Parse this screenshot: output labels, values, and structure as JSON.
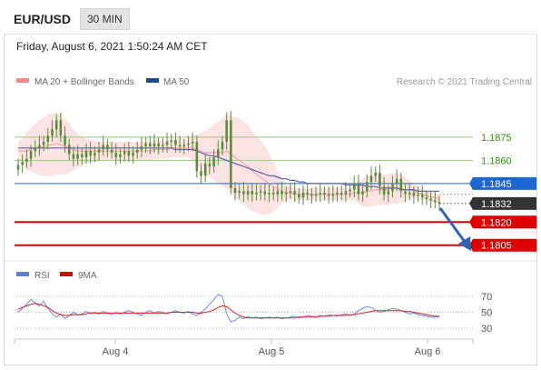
{
  "header": {
    "pair": "EUR/USD",
    "timeframe": "30 MIN"
  },
  "timestamp": "Friday, August 6, 2021 1:50:24 AM CET",
  "credit": "Research © 2021 Trading Central",
  "legend": {
    "bollinger": "MA 20 + Bollinger Bands",
    "ma50": "MA 50",
    "rsi": "RSI",
    "rsi_ma": "9MA"
  },
  "colors": {
    "candle": "#5a8a3c",
    "bollinger_fill": "#fcdede",
    "ma20": "#f0a8a8",
    "ma50": "#5b5fa8",
    "target": "#e00000",
    "pivot": "#1e66d0",
    "resistance": "#9cc87a",
    "resistance_label": "#3a8a1c",
    "current": "#333333",
    "arrow": "#2f62b3",
    "rsi": "#6b8de3",
    "rsi_ma": "#e02020"
  },
  "chart_data": {
    "type": "candlestick",
    "timeframe": "30 MIN",
    "x_ticks": [
      "Aug 4",
      "Aug 5",
      "Aug 6"
    ],
    "price_range": [
      1.1796,
      1.1905
    ],
    "levels": [
      {
        "value": "1.1875",
        "kind": "resistance"
      },
      {
        "value": "1.1860",
        "kind": "resistance"
      },
      {
        "value": "1.1845",
        "kind": "pivot"
      },
      {
        "value": "1.1832",
        "kind": "current"
      },
      {
        "value": "1.1820",
        "kind": "target"
      },
      {
        "value": "1.1805",
        "kind": "target"
      }
    ],
    "close_series": [
      1.1857,
      1.1859,
      1.1861,
      1.1866,
      1.1868,
      1.187,
      1.1872,
      1.1876,
      1.188,
      1.1886,
      1.1876,
      1.187,
      1.1864,
      1.1861,
      1.1864,
      1.1862,
      1.1866,
      1.1863,
      1.1865,
      1.1867,
      1.187,
      1.1867,
      1.1865,
      1.1862,
      1.1864,
      1.1866,
      1.1863,
      1.1865,
      1.1867,
      1.1869,
      1.1871,
      1.1869,
      1.1871,
      1.1869,
      1.187,
      1.1872,
      1.1873,
      1.187,
      1.1869,
      1.187,
      1.1871,
      1.1872,
      1.1853,
      1.185,
      1.1858,
      1.1856,
      1.1862,
      1.1867,
      1.1872,
      1.1886,
      1.1842,
      1.1839,
      1.184,
      1.1838,
      1.184,
      1.1838,
      1.1839,
      1.184,
      1.1838,
      1.1839,
      1.1838,
      1.184,
      1.1838,
      1.1839,
      1.184,
      1.1838,
      1.1836,
      1.1839,
      1.1838,
      1.1837,
      1.1838,
      1.1839,
      1.1838,
      1.1837,
      1.1838,
      1.1839,
      1.1838,
      1.184,
      1.1841,
      1.1845,
      1.1838,
      1.184,
      1.1846,
      1.185,
      1.1852,
      1.1843,
      1.1838,
      1.184,
      1.1845,
      1.1848,
      1.184,
      1.1838,
      1.1839,
      1.1837,
      1.1838,
      1.1836,
      1.1835,
      1.1834,
      1.1833,
      1.1832
    ],
    "ma20_series": [
      1.1866,
      1.1866,
      1.1866,
      1.1867,
      1.1868,
      1.1868,
      1.1869,
      1.187,
      1.187,
      1.1871,
      1.187,
      1.1869,
      1.1868,
      1.1867,
      1.1866,
      1.1866,
      1.1866,
      1.1866,
      1.1866,
      1.1866,
      1.1866,
      1.1866,
      1.1866,
      1.1866,
      1.1866,
      1.1866,
      1.1866,
      1.1866,
      1.1866,
      1.1866,
      1.1866,
      1.1866,
      1.1867,
      1.1867,
      1.1867,
      1.1867,
      1.1868,
      1.1868,
      1.1868,
      1.1868,
      1.1868,
      1.1868,
      1.1867,
      1.1866,
      1.1865,
      1.1865,
      1.1865,
      1.1865,
      1.1865,
      1.1866,
      1.1864,
      1.1862,
      1.186,
      1.1858,
      1.1856,
      1.1853,
      1.1851,
      1.1849,
      1.1847,
      1.1845,
      1.1843,
      1.1841,
      1.184,
      1.1839,
      1.1839,
      1.1838,
      1.1838,
      1.1838,
      1.1838,
      1.1838,
      1.1838,
      1.1838,
      1.1838,
      1.1838,
      1.1838,
      1.1838,
      1.1838,
      1.1838,
      1.1838,
      1.1839,
      1.1839,
      1.1839,
      1.184,
      1.184,
      1.1841,
      1.1841,
      1.1841,
      1.1841,
      1.1842,
      1.1842,
      1.1842,
      1.1841,
      1.1841,
      1.184,
      1.1839,
      1.1838,
      1.1837,
      1.1836,
      1.1836,
      1.1835
    ],
    "ma50_series": [
      1.1868,
      1.1868,
      1.1868,
      1.1868,
      1.1868,
      1.1868,
      1.1868,
      1.1868,
      1.1868,
      1.1868,
      1.1868,
      1.1868,
      1.1868,
      1.1868,
      1.1868,
      1.1868,
      1.1868,
      1.1868,
      1.1868,
      1.1868,
      1.1868,
      1.1868,
      1.1868,
      1.1868,
      1.1868,
      1.1868,
      1.1868,
      1.1868,
      1.1868,
      1.1868,
      1.1868,
      1.1868,
      1.1868,
      1.1868,
      1.1868,
      1.1868,
      1.1868,
      1.1867,
      1.1867,
      1.1867,
      1.1867,
      1.1867,
      1.1866,
      1.1865,
      1.1864,
      1.1863,
      1.1863,
      1.1862,
      1.1861,
      1.186,
      1.1859,
      1.1858,
      1.1857,
      1.1856,
      1.1855,
      1.1854,
      1.1853,
      1.1852,
      1.1851,
      1.185,
      1.185,
      1.1849,
      1.1848,
      1.1848,
      1.1847,
      1.1847,
      1.1846,
      1.1846,
      1.1845,
      1.1845,
      1.1845,
      1.1845,
      1.1845,
      1.1845,
      1.1845,
      1.1845,
      1.1845,
      1.1844,
      1.1844,
      1.1844,
      1.1844,
      1.1844,
      1.1843,
      1.1843,
      1.1843,
      1.1842,
      1.1842,
      1.1842,
      1.1842,
      1.1842,
      1.1841,
      1.1841,
      1.1841,
      1.1841,
      1.184,
      1.184,
      1.184,
      1.184,
      1.184,
      1.184
    ],
    "bollinger_width_series": [
      0.0006,
      0.0008,
      0.0012,
      0.0014,
      0.0016,
      0.0018,
      0.0019,
      0.002,
      0.002,
      0.002,
      0.0019,
      0.0018,
      0.0016,
      0.0013,
      0.0011,
      0.0009,
      0.0008,
      0.0007,
      0.0007,
      0.0006,
      0.0006,
      0.0006,
      0.0006,
      0.0006,
      0.0006,
      0.0006,
      0.0006,
      0.0006,
      0.0006,
      0.0006,
      0.0006,
      0.0006,
      0.0006,
      0.0006,
      0.0006,
      0.0006,
      0.0006,
      0.0006,
      0.0006,
      0.0006,
      0.0006,
      0.0008,
      0.001,
      0.0012,
      0.0014,
      0.0016,
      0.0018,
      0.002,
      0.0022,
      0.0024,
      0.0025,
      0.0026,
      0.0027,
      0.0027,
      0.0027,
      0.0026,
      0.0025,
      0.0024,
      0.0022,
      0.002,
      0.0016,
      0.0012,
      0.0008,
      0.0005,
      0.0004,
      0.0004,
      0.0004,
      0.0004,
      0.0004,
      0.0004,
      0.0004,
      0.0004,
      0.0004,
      0.0004,
      0.0004,
      0.0004,
      0.0004,
      0.0004,
      0.0004,
      0.0005,
      0.0007,
      0.0009,
      0.001,
      0.001,
      0.001,
      0.001,
      0.001,
      0.001,
      0.001,
      0.001,
      0.0009,
      0.0008,
      0.0006,
      0.0005,
      0.0004,
      0.0003,
      0.0003,
      0.0003,
      0.0003,
      0.0003
    ],
    "rsi_levels": [
      "70",
      "50",
      "30"
    ],
    "rsi_range": [
      20,
      80
    ],
    "rsi_series": [
      50,
      55,
      60,
      66,
      62,
      58,
      64,
      55,
      48,
      44,
      48,
      42,
      46,
      50,
      47,
      48,
      51,
      49,
      50,
      48,
      51,
      49,
      47,
      50,
      48,
      50,
      52,
      50,
      48,
      46,
      50,
      52,
      49,
      51,
      50,
      48,
      50,
      52,
      50,
      49,
      51,
      48,
      46,
      50,
      54,
      60,
      66,
      72,
      70,
      48,
      38,
      40,
      44,
      42,
      45,
      43,
      44,
      42,
      43,
      44,
      43,
      44,
      42,
      43,
      44,
      45,
      43,
      44,
      46,
      45,
      44,
      46,
      45,
      47,
      46,
      45,
      47,
      48,
      46,
      48,
      52,
      55,
      57,
      56,
      52,
      50,
      51,
      53,
      55,
      54,
      52,
      50,
      48,
      49,
      47,
      46,
      45,
      44,
      44,
      44
    ],
    "rsi_ma_series": [
      54,
      56,
      58,
      60,
      61,
      60,
      58,
      56,
      52,
      49,
      47,
      46,
      46,
      47,
      47,
      47,
      48,
      49,
      49,
      49,
      49,
      49,
      49,
      49,
      49,
      49,
      49,
      49,
      49,
      49,
      49,
      49,
      49,
      49,
      49,
      49,
      50,
      50,
      50,
      50,
      50,
      50,
      49,
      49,
      50,
      51,
      53,
      56,
      58,
      57,
      53,
      49,
      46,
      44,
      43,
      43,
      43,
      43,
      43,
      43,
      43,
      43,
      43,
      43,
      43,
      43,
      44,
      44,
      44,
      44,
      44,
      45,
      45,
      45,
      46,
      46,
      46,
      46,
      47,
      47,
      48,
      49,
      50,
      51,
      52,
      52,
      52,
      52,
      52,
      52,
      52,
      51,
      51,
      50,
      49,
      48,
      47,
      46,
      45,
      45
    ]
  }
}
